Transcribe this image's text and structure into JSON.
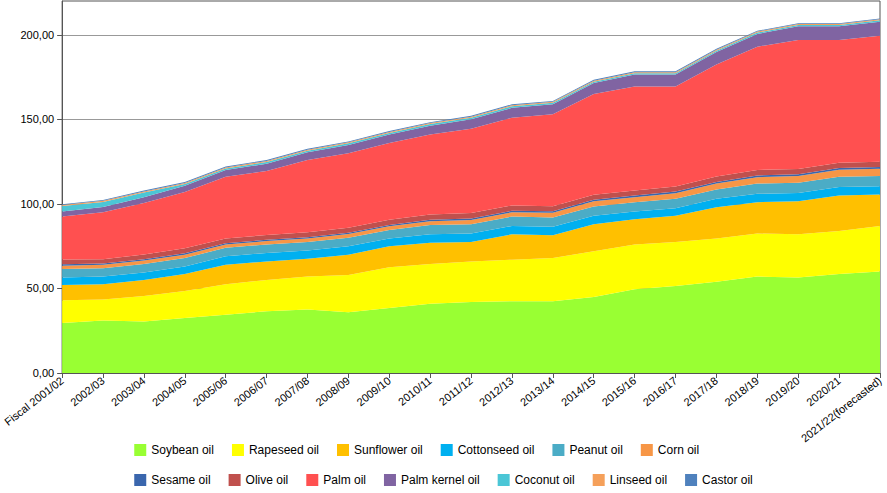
{
  "chart_data": {
    "type": "area",
    "stacked": true,
    "grid": true,
    "legend": "bottom",
    "categories": [
      "Fiscal 2001/02",
      "2002/03",
      "2003/04",
      "2004/05",
      "2005/06",
      "2006/07",
      "2007/08",
      "2008/09",
      "2009/10",
      "2010/11",
      "2011/12",
      "2012/13",
      "2013/14",
      "2014/15",
      "2015/16",
      "2016/17",
      "2017/18",
      "2018/19",
      "2019/20",
      "2020/21",
      "2021/22(forecasted)"
    ],
    "ylim": [
      0,
      220
    ],
    "yticks": [
      {
        "value": 0,
        "label": "0,00"
      },
      {
        "value": 50,
        "label": "50,00"
      },
      {
        "value": 100,
        "label": "100,00"
      },
      {
        "value": 150,
        "label": "150,00"
      },
      {
        "value": 200,
        "label": "200,00"
      }
    ],
    "series": [
      {
        "name": "Soybean oil",
        "color": "#99ff33",
        "values": [
          29.5,
          31,
          30.5,
          32.5,
          34.5,
          36.5,
          37.5,
          36,
          38.5,
          41,
          42,
          42.5,
          42.5,
          45,
          49.5,
          51.5,
          54,
          57,
          56.5,
          58.5,
          60
        ]
      },
      {
        "name": "Rapeseed oil",
        "color": "#ffff00",
        "values": [
          13.5,
          12.5,
          15,
          16,
          18,
          18.5,
          19.5,
          22,
          24,
          23.5,
          24,
          24.5,
          25.5,
          27,
          26.5,
          26,
          25.5,
          25.5,
          25.5,
          25.5,
          27
        ]
      },
      {
        "name": "Sunflower oil",
        "color": "#ffc000",
        "values": [
          9,
          9,
          9.5,
          10,
          11.5,
          11,
          10.5,
          12,
          12.5,
          12.5,
          11.5,
          15,
          13.5,
          16,
          15,
          15.5,
          18.5,
          18.5,
          19.5,
          21,
          18.5
        ]
      },
      {
        "name": "Cottonseed oil",
        "color": "#00b0f0",
        "values": [
          4.5,
          4.5,
          4.5,
          4.5,
          5,
          5,
          5,
          5,
          4.5,
          5,
          5,
          5,
          5,
          5,
          4.5,
          4.5,
          5,
          5,
          5,
          5,
          5
        ]
      },
      {
        "name": "Peanut oil",
        "color": "#4bacc6",
        "values": [
          5,
          5,
          5,
          5,
          5,
          5,
          5,
          5,
          5,
          5.5,
          5.5,
          5.5,
          5.5,
          5.5,
          5.5,
          5.5,
          5.5,
          6,
          6,
          6,
          6
        ]
      },
      {
        "name": "Corn oil",
        "color": "#f79646",
        "values": [
          2,
          2,
          2,
          2,
          2,
          2,
          2,
          2.2,
          2.3,
          2.3,
          2.5,
          2.5,
          2.7,
          3,
          3,
          3.3,
          3.5,
          3.8,
          4,
          4.2,
          4.3
        ]
      },
      {
        "name": "Sesame oil",
        "color": "#3a66ad",
        "values": [
          0.8,
          0.8,
          0.8,
          0.8,
          0.8,
          0.8,
          0.8,
          0.8,
          0.8,
          0.8,
          0.9,
          0.9,
          0.9,
          0.9,
          0.9,
          1,
          1,
          1,
          1,
          1,
          1
        ]
      },
      {
        "name": "Olive oil",
        "color": "#c0504d",
        "values": [
          2.8,
          2.5,
          2.8,
          3,
          2.8,
          2.8,
          2.9,
          2.9,
          3,
          3.2,
          3.2,
          3.2,
          3,
          3,
          3,
          3,
          3.2,
          3.3,
          3.1,
          3.1,
          3.2
        ]
      },
      {
        "name": "Palm oil",
        "color": "#ff5050",
        "values": [
          25.4,
          27.7,
          30.4,
          33.2,
          36.4,
          37.9,
          42.8,
          44.1,
          45.4,
          47.2,
          49.9,
          51.9,
          54.4,
          59.6,
          61.6,
          59.2,
          66.3,
          72.9,
          76.4,
          72.7,
          74.5
        ]
      },
      {
        "name": "Palm kernel oil",
        "color": "#8064a2",
        "values": [
          3,
          3.2,
          3.5,
          3.8,
          4,
          4.3,
          4.5,
          4.8,
          5,
          5.2,
          5.5,
          5.8,
          6,
          6.5,
          7,
          7,
          7.3,
          7.5,
          8,
          8,
          8.3
        ]
      },
      {
        "name": "Coconut oil",
        "color": "#4bc6d6",
        "values": [
          3.2,
          3,
          2.8,
          1,
          1,
          1,
          1,
          1,
          1,
          1,
          1,
          1,
          0.8,
          0.8,
          0.8,
          0.8,
          0.8,
          0.8,
          0.8,
          0.8,
          0.8
        ]
      },
      {
        "name": "Linseed oil",
        "color": "#f5a05a",
        "values": [
          0.6,
          0.6,
          0.6,
          0.6,
          0.6,
          0.6,
          0.6,
          0.6,
          0.6,
          0.6,
          0.6,
          0.6,
          0.6,
          0.6,
          0.6,
          0.6,
          0.6,
          0.6,
          0.6,
          0.6,
          0.6
        ]
      },
      {
        "name": "Castor oil",
        "color": "#4f81bd",
        "values": [
          0.5,
          0.5,
          0.5,
          0.5,
          0.5,
          0.5,
          0.5,
          0.5,
          0.5,
          0.5,
          0.5,
          0.5,
          0.5,
          0.5,
          0.5,
          0.5,
          0.5,
          0.5,
          0.5,
          0.5,
          0.5
        ]
      }
    ]
  }
}
